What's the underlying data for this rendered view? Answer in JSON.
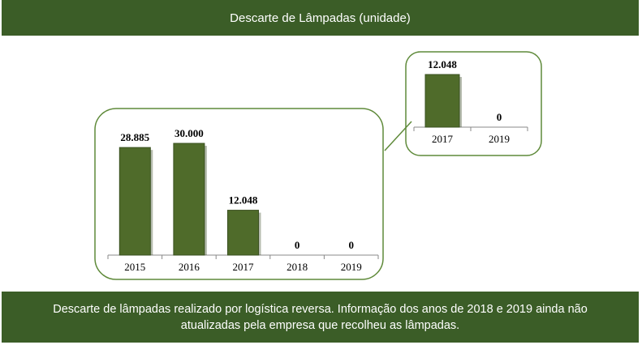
{
  "header": {
    "title": "Descarte de Lâmpadas (unidade)"
  },
  "footer": {
    "note": "Descarte de lâmpadas realizado por logística reversa. Informação dos anos de 2018 e 2019 ainda não atualizadas pela empresa que recolheu as lâmpadas."
  },
  "colors": {
    "band": "#3b5d27",
    "bar": "#4f6b2a",
    "frame": "#5f8a3a"
  },
  "chart_data": [
    {
      "type": "bar",
      "title": "",
      "categories": [
        "2015",
        "2016",
        "2017",
        "2018",
        "2019"
      ],
      "values": [
        28885,
        30000,
        12048,
        0,
        0
      ],
      "labels": [
        "28.885",
        "30.000",
        "12.048",
        "0",
        "0"
      ],
      "ylim": [
        0,
        30000
      ],
      "grid": false
    },
    {
      "type": "bar",
      "title": "",
      "categories": [
        "2017",
        "2019"
      ],
      "values": [
        12048,
        0
      ],
      "labels": [
        "12.048",
        "0"
      ],
      "ylim": [
        0,
        12048
      ],
      "grid": false
    }
  ]
}
